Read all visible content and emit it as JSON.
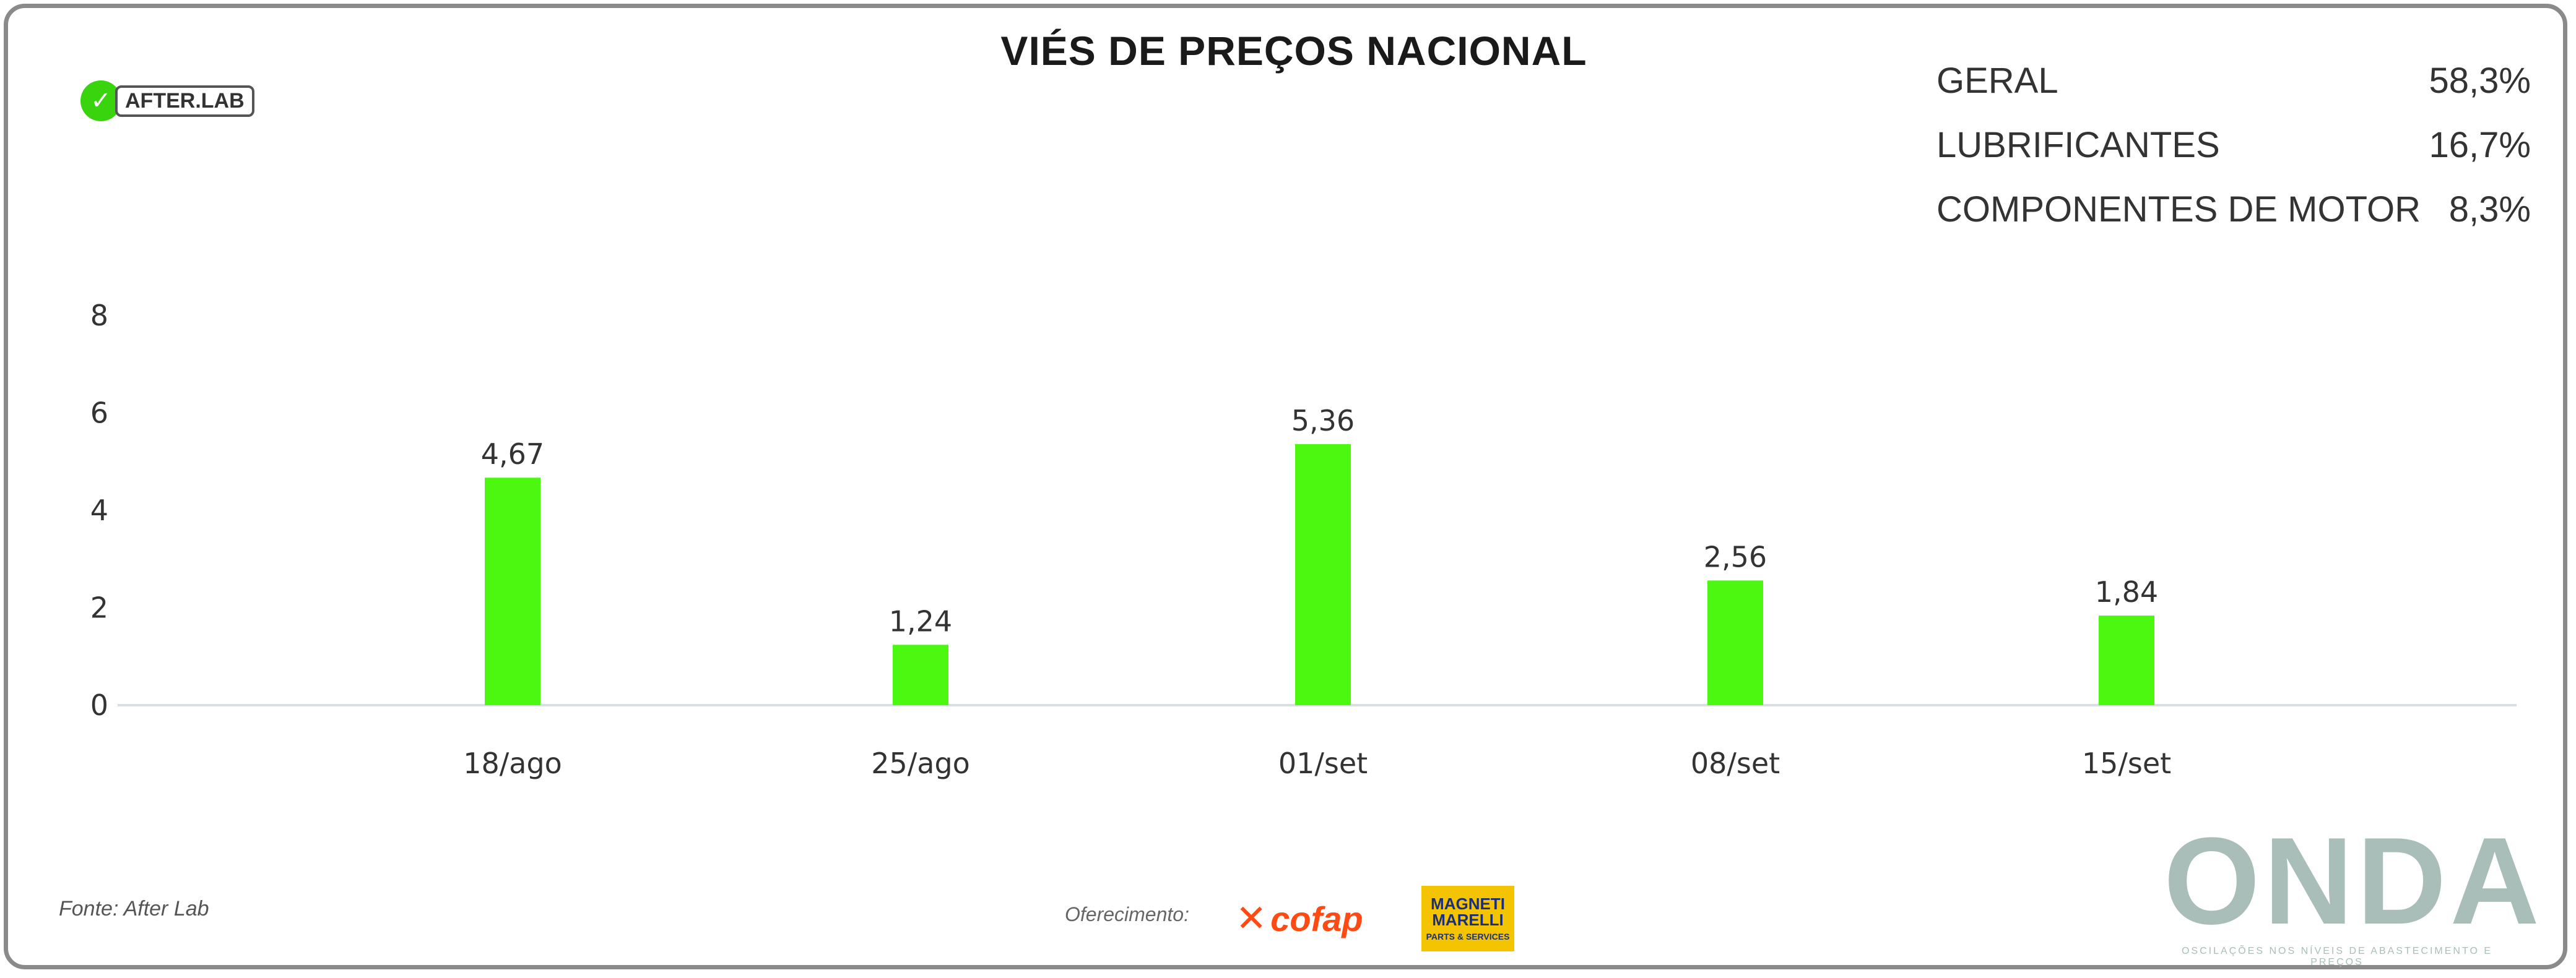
{
  "title": "VIÉS DE PREÇOS NACIONAL",
  "brand": {
    "afterlab": "AFTER.LAB"
  },
  "summary": [
    {
      "label": "GERAL",
      "value": "58,3%"
    },
    {
      "label": "LUBRIFICANTES",
      "value": "16,7%"
    },
    {
      "label": "COMPONENTES DE MOTOR",
      "value": "8,3%"
    }
  ],
  "chart_data": {
    "type": "bar",
    "categories": [
      "18/ago",
      "25/ago",
      "01/set",
      "08/set",
      "15/set"
    ],
    "values": [
      4.67,
      1.24,
      5.36,
      2.56,
      1.84
    ],
    "value_labels": [
      "4,67",
      "1,24",
      "5,36",
      "2,56",
      "1,84"
    ],
    "yticks": [
      "0",
      "2",
      "4",
      "6",
      "8"
    ],
    "ylim": [
      0,
      8
    ],
    "bar_color": "#4cf80f",
    "grid": false,
    "legend": "none"
  },
  "footer": {
    "source": "Fonte: After Lab",
    "sponsor_label": "Oferecimento:",
    "cofap": "cofap",
    "magneti_top": "MAGNETI MARELLI",
    "magneti_bottom": "PARTS & SERVICES",
    "onda": "ONDA",
    "onda_tagline": "OSCILAÇÕES NOS NÍVEIS DE ABASTECIMENTO E PREÇOS"
  }
}
